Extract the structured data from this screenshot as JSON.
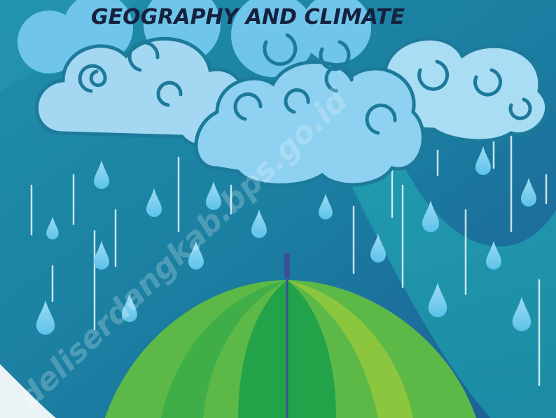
{
  "header": {
    "title": "GEOGRAPHY AND CLIMATE"
  },
  "watermark": "deliserdangkab.bps.go.id"
}
